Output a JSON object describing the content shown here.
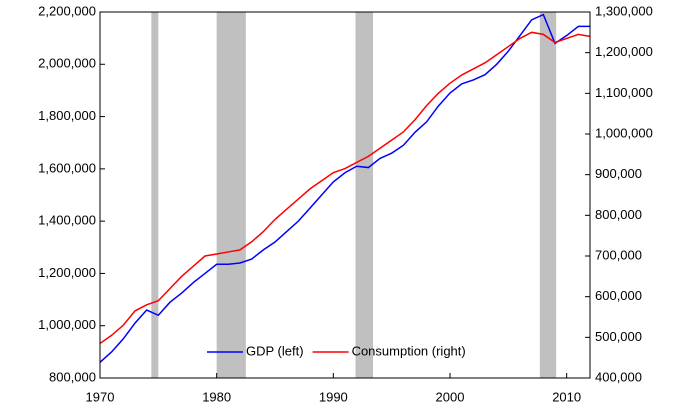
{
  "chart_data": {
    "type": "line",
    "x": [
      1970,
      1971,
      1972,
      1973,
      1974,
      1975,
      1976,
      1977,
      1978,
      1979,
      1980,
      1981,
      1982,
      1983,
      1984,
      1985,
      1986,
      1987,
      1988,
      1989,
      1990,
      1991,
      1992,
      1993,
      1994,
      1995,
      1996,
      1997,
      1998,
      1999,
      2000,
      2001,
      2002,
      2003,
      2004,
      2005,
      2006,
      2007,
      2008,
      2009,
      2010,
      2011,
      2012
    ],
    "series": [
      {
        "name": "GDP (left)",
        "color": "#0000ff",
        "axis": "y",
        "values": [
          860000,
          900000,
          950000,
          1010000,
          1060000,
          1040000,
          1090000,
          1125000,
          1165000,
          1200000,
          1235000,
          1235000,
          1240000,
          1255000,
          1290000,
          1320000,
          1360000,
          1400000,
          1450000,
          1500000,
          1550000,
          1585000,
          1610000,
          1605000,
          1640000,
          1660000,
          1690000,
          1740000,
          1780000,
          1840000,
          1890000,
          1925000,
          1940000,
          1960000,
          2000000,
          2050000,
          2110000,
          2170000,
          2190000,
          2080000,
          2110000,
          2145000,
          2145000
        ]
      },
      {
        "name": "Consumption (right)",
        "color": "#ff0000",
        "axis": "y2",
        "values": [
          485000,
          505000,
          530000,
          565000,
          580000,
          590000,
          620000,
          650000,
          675000,
          700000,
          705000,
          710000,
          715000,
          735000,
          760000,
          790000,
          815000,
          840000,
          865000,
          885000,
          905000,
          915000,
          930000,
          945000,
          965000,
          985000,
          1005000,
          1035000,
          1070000,
          1100000,
          1125000,
          1145000,
          1160000,
          1175000,
          1195000,
          1215000,
          1235000,
          1250000,
          1245000,
          1225000,
          1235000,
          1245000,
          1240000
        ]
      }
    ],
    "shaded_periods": [
      [
        1974.4,
        1975.0
      ],
      [
        1980.0,
        1982.5
      ],
      [
        1991.9,
        1993.4
      ],
      [
        2007.7,
        2009.1
      ]
    ],
    "shade_color": "#c0c0c0",
    "xlim": [
      1970,
      2012
    ],
    "xticks": [
      1970,
      1980,
      1990,
      2000,
      2010
    ],
    "ylim": [
      800000,
      2200000
    ],
    "yticks": [
      {
        "value": 800000,
        "label": "800,000"
      },
      {
        "value": 1000000,
        "label": "1,000,000"
      },
      {
        "value": 1200000,
        "label": "1,200,000"
      },
      {
        "value": 1400000,
        "label": "1,400,000"
      },
      {
        "value": 1600000,
        "label": "1,600,000"
      },
      {
        "value": 1800000,
        "label": "1,800,000"
      },
      {
        "value": 2000000,
        "label": "2,000,000"
      },
      {
        "value": 2200000,
        "label": "2,200,000"
      }
    ],
    "y2lim": [
      400000,
      1300000
    ],
    "y2ticks": [
      {
        "value": 400000,
        "label": "400,000"
      },
      {
        "value": 500000,
        "label": "500,000"
      },
      {
        "value": 600000,
        "label": "600,000"
      },
      {
        "value": 700000,
        "label": "700,000"
      },
      {
        "value": 800000,
        "label": "800,000"
      },
      {
        "value": 900000,
        "label": "900,000"
      },
      {
        "value": 1000000,
        "label": "1,000,000"
      },
      {
        "value": 1100000,
        "label": "1,100,000"
      },
      {
        "value": 1200000,
        "label": "1,200,000"
      },
      {
        "value": 1300000,
        "label": "1,300,000"
      }
    ],
    "grid": false,
    "legend": "lower center"
  }
}
